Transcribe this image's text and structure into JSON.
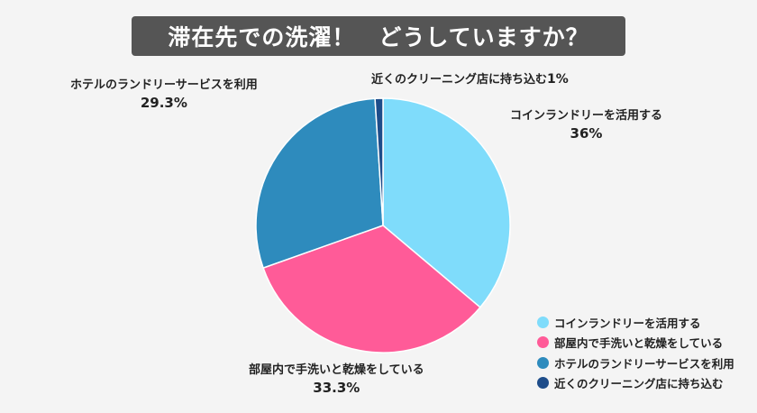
{
  "title": "滞在先での洗濯！　どうしていますか？",
  "chart_data": {
    "type": "pie",
    "title": "滞在先での洗濯！　どうしていますか？",
    "slices": [
      {
        "label": "コインランドリーを活用する",
        "value": 36,
        "value_label": "36%",
        "color": "#7fdcfb"
      },
      {
        "label": "部屋内で手洗いと乾燥をしている",
        "value": 33.3,
        "value_label": "33.3%",
        "color": "#ff5b98"
      },
      {
        "label": "ホテルのランドリーサービスを利用",
        "value": 29.3,
        "value_label": "29.3%",
        "color": "#2e8bbd"
      },
      {
        "label": "近くのクリーニング店に持ち込む",
        "value": 1,
        "value_label": "1%",
        "color": "#1e4d8a"
      }
    ],
    "legend": {
      "placement": "bottom-right",
      "entries": [
        "コインランドリーを活用する",
        "部屋内で手洗いと乾燥をしている",
        "ホテルのランドリーサービスを利用",
        "近くのクリーニング店に持ち込む"
      ]
    }
  }
}
